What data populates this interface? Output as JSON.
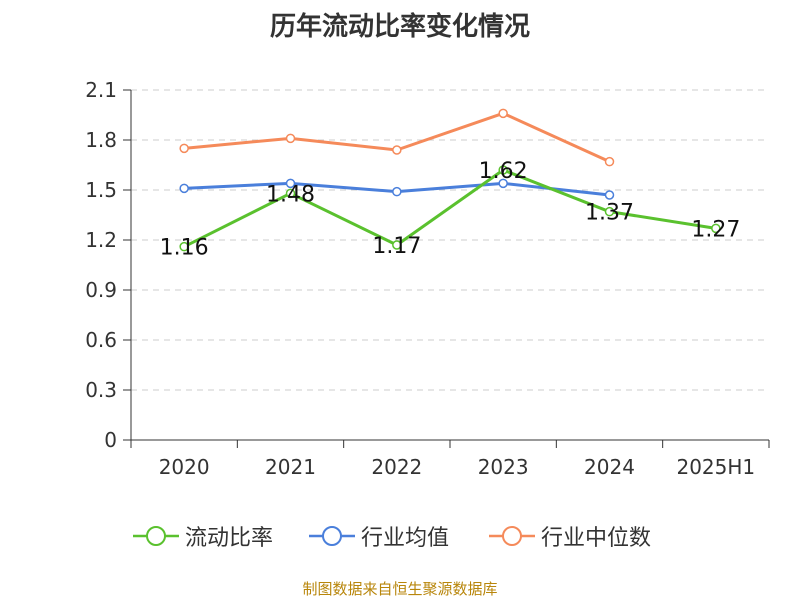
{
  "chart_data": {
    "type": "line",
    "title": "历年流动比率变化情况",
    "categories": [
      "2020",
      "2021",
      "2022",
      "2023",
      "2024",
      "2025H1"
    ],
    "ylim": [
      0,
      2.1
    ],
    "yticks": [
      "0",
      "0.3",
      "0.6",
      "0.9",
      "1.2",
      "1.5",
      "1.8",
      "2.1"
    ],
    "grid": true,
    "legend_position": "bottom",
    "series": [
      {
        "name": "流动比率",
        "color": "#5ac12e",
        "values": [
          1.16,
          1.48,
          1.17,
          1.62,
          1.37,
          1.27
        ],
        "labels": [
          "1.16",
          "1.48",
          "1.17",
          "1.62",
          "1.37",
          "1.27"
        ]
      },
      {
        "name": "行业均值",
        "color": "#4a7fdb",
        "values": [
          1.51,
          1.54,
          1.49,
          1.54,
          1.47,
          null
        ]
      },
      {
        "name": "行业中位数",
        "color": "#f58a5a",
        "values": [
          1.75,
          1.81,
          1.74,
          1.96,
          1.67,
          null
        ]
      }
    ]
  },
  "source": "制图数据来自恒生聚源数据库"
}
